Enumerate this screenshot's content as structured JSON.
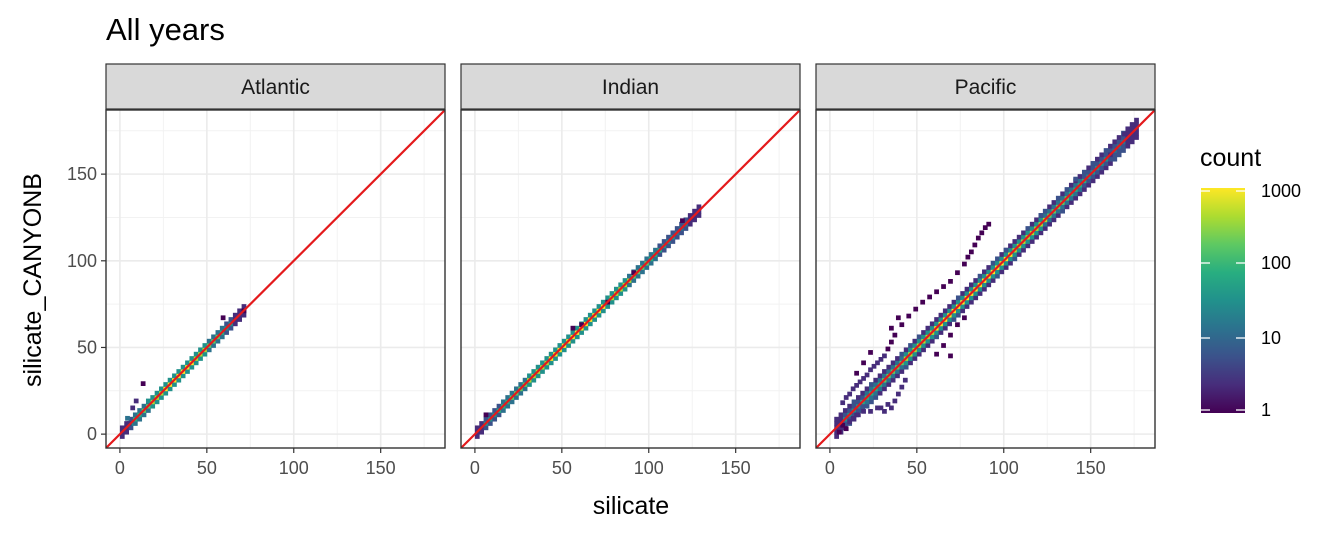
{
  "chart_data": {
    "type": "heatmap",
    "title": "All years",
    "xlabel": "silicate",
    "ylabel": "silicate_CANYONB",
    "xlim": [
      -8,
      187
    ],
    "ylim": [
      -8,
      187
    ],
    "x_ticks": [
      0,
      50,
      100,
      150
    ],
    "y_ticks": [
      0,
      50,
      100,
      150
    ],
    "grid": true,
    "reference_line": {
      "slope": 1,
      "intercept": 0,
      "color": "#e41a1c"
    },
    "facets": [
      {
        "label": "Atlantic",
        "diagonal": {
          "from": 0,
          "to": 72,
          "width": 3
        },
        "extra_cells": [
          [
            12,
            28,
            1
          ],
          [
            8,
            18,
            3
          ],
          [
            6,
            14,
            3
          ],
          [
            3,
            8,
            20
          ],
          [
            4,
            5,
            2
          ],
          [
            15,
            18,
            30
          ],
          [
            58,
            66,
            1
          ],
          [
            70,
            70,
            1
          ]
        ]
      },
      {
        "label": "Indian",
        "diagonal": {
          "from": 0,
          "to": 128,
          "width": 2
        },
        "extra_cells": [
          [
            55,
            60,
            1
          ],
          [
            60,
            62,
            1
          ],
          [
            75,
            75,
            1
          ],
          [
            5,
            10,
            1
          ],
          [
            90,
            92,
            1
          ],
          [
            118,
            122,
            1
          ]
        ]
      },
      {
        "label": "Pacific",
        "diagonal": {
          "from": 2,
          "to": 176,
          "width": 5
        },
        "extra_cells": [
          [
            60,
            81,
            1
          ],
          [
            64,
            84,
            1
          ],
          [
            68,
            87,
            1
          ],
          [
            72,
            92,
            1
          ],
          [
            76,
            97,
            1
          ],
          [
            78,
            101,
            1
          ],
          [
            80,
            104,
            1
          ],
          [
            82,
            108,
            1
          ],
          [
            84,
            112,
            1
          ],
          [
            86,
            115,
            1
          ],
          [
            88,
            118,
            1
          ],
          [
            90,
            120,
            1
          ],
          [
            44,
            67,
            1
          ],
          [
            48,
            71,
            1
          ],
          [
            52,
            75,
            1
          ],
          [
            56,
            78,
            1
          ],
          [
            40,
            62,
            1
          ],
          [
            36,
            56,
            1
          ],
          [
            34,
            52,
            1
          ],
          [
            32,
            48,
            1
          ],
          [
            30,
            44,
            2
          ],
          [
            28,
            42,
            2
          ],
          [
            26,
            40,
            2
          ],
          [
            24,
            38,
            2
          ],
          [
            22,
            36,
            2
          ],
          [
            20,
            33,
            2
          ],
          [
            18,
            31,
            2
          ],
          [
            16,
            29,
            2
          ],
          [
            14,
            27,
            2
          ],
          [
            12,
            25,
            2
          ],
          [
            10,
            22,
            3
          ],
          [
            8,
            20,
            3
          ],
          [
            6,
            17,
            3
          ],
          [
            30,
            12,
            2
          ],
          [
            34,
            14,
            2
          ],
          [
            32,
            16,
            2
          ],
          [
            28,
            14,
            2
          ],
          [
            36,
            18,
            2
          ],
          [
            38,
            22,
            2
          ],
          [
            40,
            26,
            2
          ],
          [
            42,
            30,
            2
          ],
          [
            10,
            6,
            3
          ],
          [
            12,
            8,
            3
          ],
          [
            14,
            10,
            3
          ],
          [
            18,
            12,
            3
          ],
          [
            22,
            12,
            2
          ],
          [
            26,
            14,
            2
          ],
          [
            60,
            45,
            1
          ],
          [
            64,
            50,
            1
          ],
          [
            68,
            56,
            1
          ],
          [
            72,
            62,
            1
          ],
          [
            76,
            66,
            1
          ],
          [
            4,
            0,
            1
          ],
          [
            8,
            2,
            1
          ],
          [
            6,
            4,
            1
          ],
          [
            68,
            44,
            1
          ],
          [
            14,
            34,
            1
          ],
          [
            18,
            40,
            1
          ],
          [
            22,
            46,
            1
          ],
          [
            34,
            60,
            1
          ],
          [
            38,
            66,
            1
          ],
          [
            100,
            105,
            4
          ],
          [
            120,
            125,
            4
          ],
          [
            140,
            146,
            4
          ],
          [
            150,
            155,
            4
          ],
          [
            160,
            160,
            3
          ],
          [
            168,
            172,
            2
          ],
          [
            172,
            174,
            2
          ]
        ]
      }
    ],
    "legend": {
      "title": "count",
      "scale": "log",
      "min": 1,
      "max": 1000,
      "breaks": [
        1,
        10,
        100,
        1000
      ],
      "break_labels": [
        "1",
        "10",
        "100",
        "1000"
      ],
      "colormap": "viridis",
      "colors": [
        "#440154",
        "#472d7b",
        "#3b528b",
        "#2c728e",
        "#21918c",
        "#28ae80",
        "#5ec962",
        "#addc30",
        "#fde725"
      ]
    }
  }
}
